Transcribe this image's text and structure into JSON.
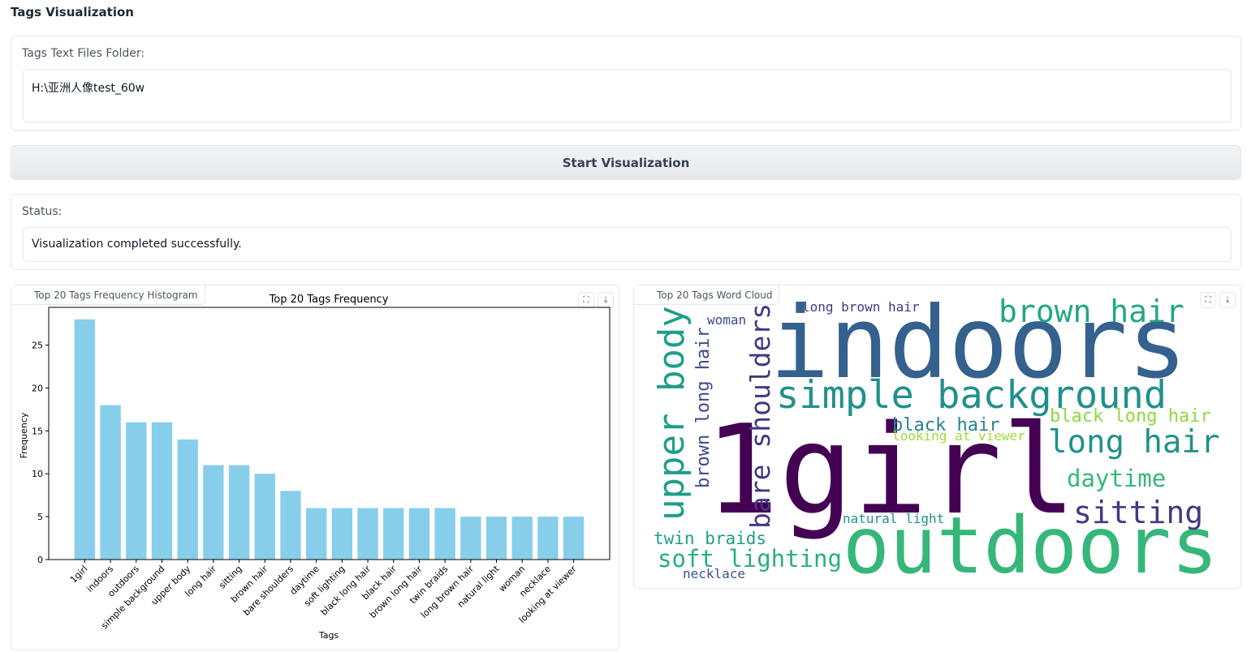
{
  "title": "Tags Visualization",
  "folder": {
    "label": "Tags Text Files Folder:",
    "value": "H:\\亚洲人像test_60w"
  },
  "button": "Start Visualization",
  "status": {
    "label": "Status:",
    "value": "Visualization completed successfully."
  },
  "histogram_panel": {
    "label": "Top 20 Tags Frequency Histogram"
  },
  "chart_data": {
    "type": "bar",
    "title": "Top 20 Tags Frequency",
    "x_label": "Tags",
    "y_label": "Frequency",
    "categories": [
      "1girl",
      "indoors",
      "outdoors",
      "simple background",
      "upper body",
      "long hair",
      "sitting",
      "brown hair",
      "bare shoulders",
      "daytime",
      "soft lighting",
      "black long hair",
      "black hair",
      "brown long hair",
      "twin braids",
      "long brown hair",
      "natural light",
      "woman",
      "necklace",
      "looking at viewer"
    ],
    "values": [
      28,
      18,
      16,
      16,
      14,
      11,
      11,
      10,
      8,
      6,
      6,
      6,
      6,
      6,
      6,
      5,
      5,
      5,
      5,
      5
    ],
    "color": "#87ceeb",
    "ylim": [
      0,
      29.4
    ],
    "yticks": [
      0,
      5,
      10,
      15,
      20,
      25
    ]
  },
  "wordcloud": {
    "label": "Top 20 Tags Word Cloud",
    "words": [
      {
        "text": "indoors",
        "color": "#34618d"
      },
      {
        "text": "1girl",
        "color": "#440154"
      },
      {
        "text": "outdoors",
        "color": "#35b779"
      },
      {
        "text": "simple background",
        "color": "#21908d"
      },
      {
        "text": "brown hair",
        "color": "#22a785"
      },
      {
        "text": "long hair",
        "color": "#21918c"
      },
      {
        "text": "upper body",
        "color": "#1f9e89"
      },
      {
        "text": "bare shoulders",
        "color": "#453781"
      },
      {
        "text": "brown long hair",
        "color": "#3e4a89"
      },
      {
        "text": "woman",
        "color": "#3e4989"
      },
      {
        "text": "long brown hair",
        "color": "#443a83"
      },
      {
        "text": "black hair",
        "color": "#26828e"
      },
      {
        "text": "looking at viewer",
        "color": "#a0da39"
      },
      {
        "text": "black long hair",
        "color": "#8fd744"
      },
      {
        "text": "daytime",
        "color": "#35b779"
      },
      {
        "text": "sitting",
        "color": "#443983"
      },
      {
        "text": "natural light",
        "color": "#21918c"
      },
      {
        "text": "twin braids",
        "color": "#1f9e89"
      },
      {
        "text": "soft lighting",
        "color": "#29af7f"
      },
      {
        "text": "necklace",
        "color": "#3b528b"
      }
    ]
  }
}
